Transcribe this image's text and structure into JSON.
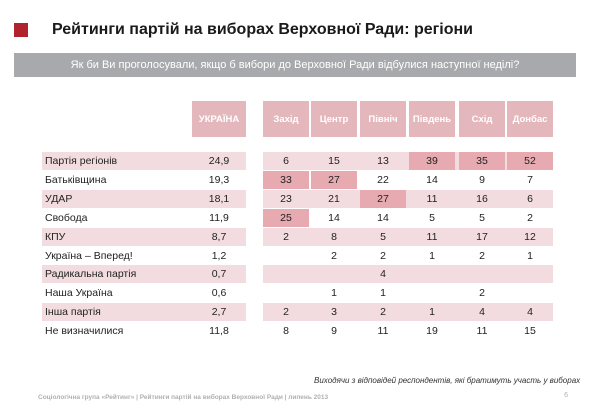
{
  "title": "Рейтинги партій на виборах Верховної Ради: регіони",
  "question": "Як би Ви проголосували, якщо б вибори до Верховної Ради відбулися наступної неділі?",
  "headers": {
    "ukraine": "УКРАЇНА",
    "regions": [
      "Захід",
      "Центр",
      "Північ",
      "Південь",
      "Схід",
      "Донбас"
    ]
  },
  "rows": [
    {
      "party": "Партія регіонів",
      "ukraine": "24,9",
      "regions": [
        "6",
        "15",
        "13",
        "39",
        "35",
        "52"
      ]
    },
    {
      "party": "Батьківщина",
      "ukraine": "19,3",
      "regions": [
        "33",
        "27",
        "22",
        "14",
        "9",
        "7"
      ]
    },
    {
      "party": "УДАР",
      "ukraine": "18,1",
      "regions": [
        "23",
        "21",
        "27",
        "11",
        "16",
        "6"
      ]
    },
    {
      "party": "Свобода",
      "ukraine": "11,9",
      "regions": [
        "25",
        "14",
        "14",
        "5",
        "5",
        "2"
      ]
    },
    {
      "party": "КПУ",
      "ukraine": "8,7",
      "regions": [
        "2",
        "8",
        "5",
        "11",
        "17",
        "12"
      ]
    },
    {
      "party": "Україна – Вперед!",
      "ukraine": "1,2",
      "regions": [
        "",
        "2",
        "2",
        "1",
        "2",
        "1"
      ]
    },
    {
      "party": "Радикальна партія",
      "ukraine": "0,7",
      "regions": [
        "",
        "",
        "4",
        "",
        "",
        ""
      ]
    },
    {
      "party": "Наша Україна",
      "ukraine": "0,6",
      "regions": [
        "",
        "1",
        "1",
        "",
        "2",
        ""
      ]
    },
    {
      "party": "Інша партія",
      "ukraine": "2,7",
      "regions": [
        "2",
        "3",
        "2",
        "1",
        "4",
        "4"
      ]
    },
    {
      "party": "Не визначилися",
      "ukraine": "11,8",
      "regions": [
        "8",
        "9",
        "11",
        "19",
        "11",
        "15"
      ]
    }
  ],
  "footnote": "Виходячи з відповідей респондентів, які  братимуть  участь у виборах",
  "footer": "Соціологічна група «Рейтинг»  |  Рейтинги партій на виборах Верховної Ради  | липень 2013",
  "page_number": "6",
  "colors": {
    "accent": "#b1232c",
    "header_fill": "#e4b7bc",
    "row_band": "#f2dcdf",
    "highlight": "#e7aab1",
    "question_bar": "#a7a9ac"
  }
}
